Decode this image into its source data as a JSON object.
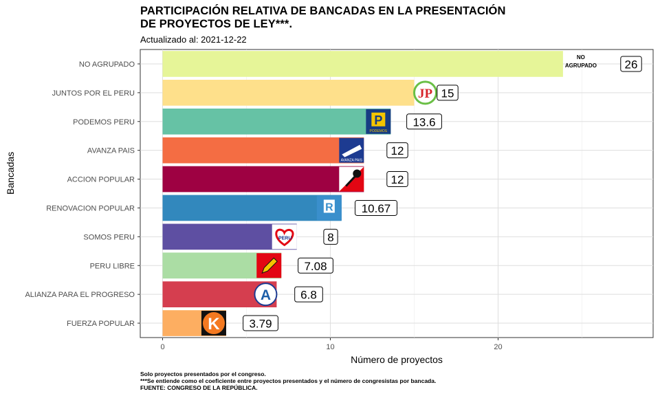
{
  "header": {
    "title_line1": "PARTICIPACIÓN RELATIVA DE BANCADAS EN LA PRESENTACIÓN",
    "title_line2": "DE PROYECTOS DE LEY***.",
    "subtitle": "Actualizado al: 2021-12-22"
  },
  "footer": {
    "note1": "Solo proyectos presentados por el congreso.",
    "note2": "***Se entiende como el coeficiente entre proyectos presentados y el número de congresistas por bancada.",
    "note3": "FUENTE: CONGRESO DE LA REPÚBLICA."
  },
  "chart_data": {
    "type": "bar",
    "orientation": "horizontal",
    "xlabel": "Número de proyectos",
    "ylabel": "Bancadas",
    "xlim": [
      -1.4,
      29.3
    ],
    "x_ticks": [
      0,
      10,
      20
    ],
    "grid": true,
    "categories": [
      "NO AGRUPADO",
      "JUNTOS POR EL PERU",
      "PODEMOS PERU",
      "AVANZA PAIS",
      "ACCION POPULAR",
      "RENOVACION POPULAR",
      "SOMOS PERU",
      "PERU LIBRE",
      "ALIANZA PARA EL PROGRESO",
      "FUERZA POPULAR"
    ],
    "values": [
      26,
      15,
      13.6,
      12,
      12,
      10.67,
      8,
      7.08,
      6.8,
      3.79
    ],
    "value_labels": [
      "26",
      "15",
      "13.6",
      "12",
      "12",
      "10.67",
      "8",
      "7.08",
      "6.8",
      "3.79"
    ],
    "colors": [
      "#e6f598",
      "#fee08b",
      "#66c2a5",
      "#f46d43",
      "#9e0142",
      "#3288bd",
      "#5e4fa2",
      "#abdda4",
      "#d53e4f",
      "#fdae61"
    ],
    "logos": [
      {
        "name": "no-agrupado-logo",
        "text": "NO AGRUPADO"
      },
      {
        "name": "juntos-por-el-peru-logo",
        "text": "JP"
      },
      {
        "name": "podemos-peru-logo",
        "text": "P",
        "subtext": "PODEMOS"
      },
      {
        "name": "avanza-pais-logo",
        "text": "AVANZA PAIS"
      },
      {
        "name": "accion-popular-logo",
        "text": ""
      },
      {
        "name": "renovacion-popular-logo",
        "text": "R"
      },
      {
        "name": "somos-peru-logo",
        "text": "PERU"
      },
      {
        "name": "peru-libre-logo",
        "text": ""
      },
      {
        "name": "alianza-para-el-progreso-logo",
        "text": "A"
      },
      {
        "name": "fuerza-popular-logo",
        "text": "K"
      }
    ]
  }
}
